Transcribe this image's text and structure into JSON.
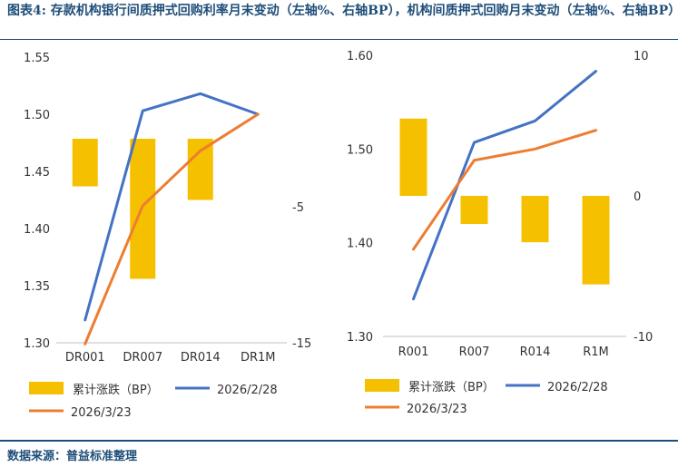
{
  "title": "图表4:  存款机构银行间质押式回购利率月末变动（左轴%、右轴BP），机构间质押式回购月末变动（左轴%、右轴BP）",
  "source": "数据来源：普益标准整理",
  "colors": {
    "bar": "#f5c000",
    "line_0228": "#4472c4",
    "line_0323": "#ed7d31",
    "title": "#1f4e79"
  },
  "chart_data": [
    {
      "type": "bar+line",
      "categories": [
        "DR001",
        "DR007",
        "DR014",
        "DR1M"
      ],
      "left_axis": {
        "ylim": [
          1.3,
          1.55
        ],
        "ticks": [
          "1.30",
          "1.35",
          "1.40",
          "1.45",
          "1.50",
          "1.55"
        ]
      },
      "right_axis": {
        "ylim": [
          -15,
          6
        ],
        "ticks": [
          "-5",
          "-15"
        ]
      },
      "series": [
        {
          "name": "累计涨跌（BP）",
          "kind": "bar",
          "axis": "right",
          "values": [
            -3.5,
            -10.3,
            -4.5,
            null
          ]
        },
        {
          "name": "2026/2/28",
          "kind": "line",
          "axis": "left",
          "values": [
            1.32,
            1.503,
            1.518,
            1.5
          ]
        },
        {
          "name": "2026/3/23",
          "kind": "line",
          "axis": "left",
          "values": [
            1.299,
            1.42,
            1.468,
            1.5
          ]
        }
      ],
      "legend": [
        "累计涨跌（BP）",
        "2026/2/28",
        "2026/3/23"
      ]
    },
    {
      "type": "bar+line",
      "categories": [
        "R001",
        "R007",
        "R014",
        "R1M"
      ],
      "left_axis": {
        "ylim": [
          1.3,
          1.6
        ],
        "ticks": [
          "1.30",
          "1.40",
          "1.50",
          "1.60"
        ]
      },
      "right_axis": {
        "ylim": [
          -10,
          10
        ],
        "ticks": [
          "10",
          "0",
          "-10"
        ]
      },
      "series": [
        {
          "name": "累计涨跌（BP）",
          "kind": "bar",
          "axis": "right",
          "values": [
            5.5,
            -2.0,
            -3.3,
            -6.3
          ]
        },
        {
          "name": "2026/2/28",
          "kind": "line",
          "axis": "left",
          "values": [
            1.34,
            1.507,
            1.53,
            1.583
          ]
        },
        {
          "name": "2026/3/23",
          "kind": "line",
          "axis": "left",
          "values": [
            1.393,
            1.488,
            1.5,
            1.52
          ]
        }
      ],
      "legend": [
        "累计涨跌（BP）",
        "2026/2/28",
        "2026/3/23"
      ]
    }
  ]
}
